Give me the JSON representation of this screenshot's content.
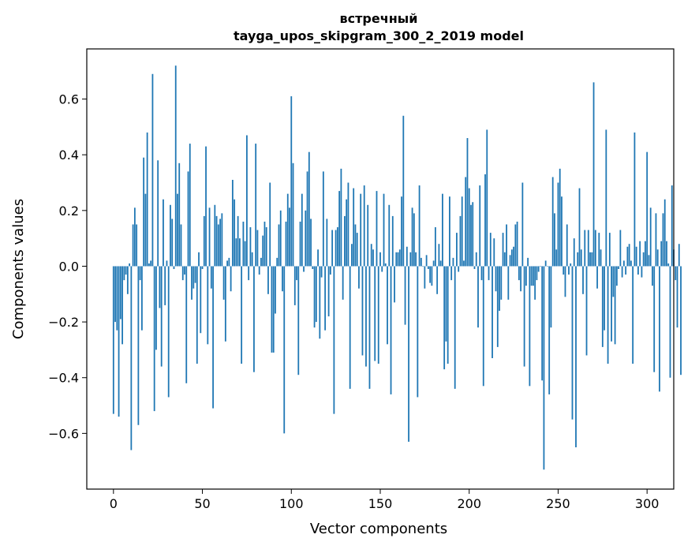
{
  "chart_data": {
    "type": "bar",
    "title": "встречный",
    "subtitle": "tayga_upos_skipgram_300_2_2019 model",
    "xlabel": "Vector components",
    "ylabel": "Components values",
    "xlim": [
      -15,
      315
    ],
    "ylim": [
      -0.8,
      0.78
    ],
    "xticks": [
      0,
      50,
      100,
      150,
      200,
      250,
      300
    ],
    "xtick_labels": [
      "0",
      "50",
      "100",
      "150",
      "200",
      "250",
      "300"
    ],
    "yticks": [
      -0.6,
      -0.4,
      -0.2,
      0.0,
      0.2,
      0.4,
      0.6
    ],
    "ytick_labels": [
      "−0.6",
      "−0.4",
      "−0.2",
      "0.0",
      "0.2",
      "0.4",
      "0.6"
    ],
    "bar_color": "#1f77b4",
    "grid": false,
    "legend": "none",
    "values": [
      -0.53,
      -0.2,
      -0.23,
      -0.54,
      -0.19,
      -0.28,
      -0.05,
      -0.03,
      -0.1,
      0.01,
      -0.66,
      0.15,
      0.21,
      0.15,
      -0.57,
      -0.05,
      -0.23,
      0.39,
      0.26,
      0.48,
      0.01,
      0.02,
      0.69,
      -0.52,
      -0.3,
      0.38,
      -0.15,
      -0.36,
      0.24,
      -0.14,
      0.02,
      -0.47,
      0.22,
      0.17,
      -0.01,
      0.72,
      0.26,
      0.37,
      0.15,
      -0.05,
      -0.03,
      -0.42,
      0.34,
      0.44,
      -0.12,
      -0.08,
      -0.06,
      -0.35,
      0.05,
      -0.24,
      -0.01,
      0.18,
      0.43,
      -0.28,
      0.21,
      -0.08,
      -0.51,
      0.22,
      0.18,
      0.15,
      0.17,
      0.19,
      -0.12,
      -0.27,
      0.02,
      0.03,
      -0.09,
      0.31,
      0.24,
      0.1,
      0.18,
      0.1,
      -0.35,
      0.16,
      0.09,
      0.47,
      -0.05,
      0.14,
      0.05,
      -0.38,
      0.44,
      0.13,
      -0.03,
      0.03,
      0.11,
      0.16,
      0.14,
      -0.1,
      0.3,
      -0.31,
      -0.31,
      -0.17,
      0.03,
      0.15,
      0.2,
      -0.09,
      -0.6,
      0.16,
      0.26,
      0.21,
      0.61,
      0.37,
      -0.14,
      -0.05,
      -0.39,
      0.16,
      0.26,
      -0.02,
      0.2,
      0.34,
      0.41,
      0.17,
      -0.01,
      -0.22,
      -0.2,
      0.06,
      -0.26,
      -0.04,
      0.34,
      -0.23,
      0.17,
      -0.18,
      -0.03,
      0.13,
      -0.53,
      0.13,
      0.14,
      0.27,
      0.35,
      -0.12,
      0.18,
      0.24,
      0.3,
      -0.44,
      0.08,
      0.28,
      0.15,
      0.12,
      -0.08,
      0.26,
      -0.32,
      0.29,
      -0.36,
      0.22,
      -0.44,
      0.08,
      0.06,
      -0.34,
      0.27,
      -0.35,
      0.05,
      -0.02,
      0.26,
      0.01,
      -0.28,
      0.22,
      -0.46,
      0.18,
      -0.13,
      0.05,
      0.05,
      0.06,
      0.25,
      0.54,
      -0.21,
      0.07,
      -0.63,
      0.05,
      0.21,
      0.19,
      0.05,
      -0.47,
      0.29,
      0.03,
      0.0,
      -0.08,
      0.04,
      -0.01,
      -0.06,
      -0.07,
      0.02,
      0.14,
      -0.1,
      0.08,
      0.02,
      0.26,
      -0.37,
      -0.27,
      -0.35,
      0.25,
      -0.05,
      0.03,
      -0.44,
      0.12,
      -0.02,
      0.18,
      0.25,
      0.02,
      0.32,
      0.46,
      0.28,
      0.22,
      0.23,
      -0.01,
      0.05,
      -0.22,
      0.29,
      -0.05,
      -0.43,
      0.33,
      0.49,
      -0.05,
      0.12,
      -0.33,
      0.1,
      -0.09,
      -0.29,
      -0.16,
      -0.12,
      0.12,
      0.05,
      0.15,
      -0.12,
      0.04,
      0.06,
      0.07,
      0.15,
      0.16,
      -0.05,
      -0.09,
      0.3,
      -0.36,
      -0.07,
      0.03,
      -0.43,
      -0.07,
      -0.07,
      -0.12,
      -0.05,
      -0.02,
      0.0,
      -0.41,
      -0.73,
      0.02,
      0.0,
      -0.46,
      -0.22,
      0.32,
      0.19,
      0.06,
      0.3,
      0.35,
      0.25,
      -0.03,
      -0.11,
      0.15,
      -0.03,
      0.01,
      -0.55,
      0.1,
      -0.65,
      0.05,
      0.28,
      0.06,
      -0.1,
      0.13,
      -0.32,
      0.13,
      0.05,
      0.05,
      0.66,
      0.13,
      -0.08,
      0.12,
      0.06,
      -0.29,
      -0.23,
      0.49,
      -0.35,
      0.12,
      -0.27,
      -0.11,
      -0.28,
      -0.07,
      -0.01,
      0.13,
      -0.04,
      0.02,
      -0.03,
      0.07,
      0.08,
      0.02,
      -0.35,
      0.48,
      0.07,
      -0.03,
      0.09,
      -0.04,
      0.05,
      0.09,
      0.41,
      0.04,
      0.21,
      -0.07,
      -0.38,
      0.19,
      0.06,
      -0.45,
      0.09,
      0.19,
      0.24,
      0.09,
      0.01,
      -0.4,
      0.29,
      0.06,
      -0.05,
      -0.22,
      0.08,
      -0.39
    ]
  }
}
